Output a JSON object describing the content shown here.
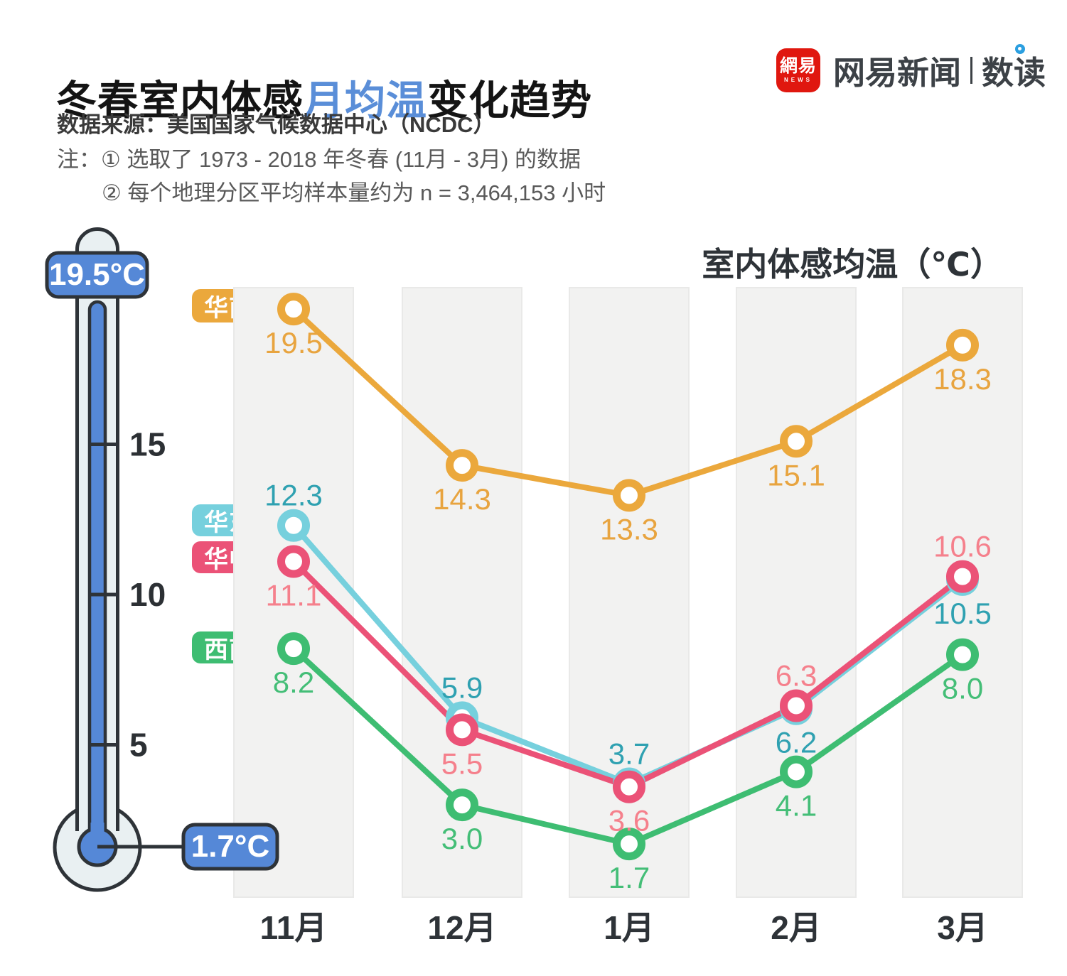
{
  "header": {
    "title_part1": "冬春室内体感",
    "title_part2": "月均温",
    "title_part3": "变化趋势",
    "source": "数据来源：美国国家气候数据中心（NCDC）",
    "note_line1": "注：① 选取了 1973 - 2018 年冬春 (11月 - 3月) 的数据",
    "note_line2": "② 每个地理分区平均样本量约为 n = 3,464,153 小时"
  },
  "logo": {
    "mark_text": "網易",
    "mark_sub": "NEWS",
    "name": "网易新闻",
    "section": "数读",
    "mark_color": "#E0170F",
    "dot_color": "#2B9FE0"
  },
  "thermometer": {
    "top_label": "19.5°C",
    "bottom_label": "1.7°C",
    "fluid_color": "#5588D7",
    "outline_color": "#2E3338",
    "tube_color": "#E9F0F2",
    "ticks": [
      {
        "label": "15",
        "value": 15
      },
      {
        "label": "10",
        "value": 10
      },
      {
        "label": "5",
        "value": 5
      }
    ]
  },
  "chart_data": {
    "type": "line",
    "title": "室内体感均温（℃）",
    "xlabel": "",
    "ylabel": "室内体感均温（℃）",
    "categories": [
      "11月",
      "12月",
      "1月",
      "2月",
      "3月"
    ],
    "series": [
      {
        "key": "huanan",
        "name": "华南",
        "color": "#EBA83C",
        "label_color": "#E8A43F",
        "values": [
          19.5,
          14.3,
          13.3,
          15.1,
          18.3
        ],
        "label_side": [
          "below",
          "below",
          "below",
          "below",
          "below"
        ]
      },
      {
        "key": "huadong",
        "name": "华东",
        "color": "#76D0DD",
        "label_color": "#2FA1B1",
        "values": [
          12.3,
          5.9,
          3.7,
          6.2,
          10.5
        ],
        "label_side": [
          "above",
          "above",
          "above",
          "below",
          "below"
        ]
      },
      {
        "key": "huazhong",
        "name": "华中",
        "color": "#EB5277",
        "label_color": "#F5808C",
        "values": [
          11.1,
          5.5,
          3.6,
          6.3,
          10.6
        ],
        "label_side": [
          "below",
          "below",
          "below",
          "above",
          "above"
        ]
      },
      {
        "key": "xinan",
        "name": "西南",
        "color": "#3EBD72",
        "label_color": "#44BE77",
        "values": [
          8.2,
          3.0,
          1.7,
          4.1,
          8.0
        ],
        "label_side": [
          "below",
          "below",
          "below",
          "below",
          "below"
        ]
      }
    ],
    "ylim": [
      0,
      20.2
    ],
    "grid": "column-bands",
    "band_color": "#F2F2F1",
    "legend_position": "left-of-first-point"
  }
}
